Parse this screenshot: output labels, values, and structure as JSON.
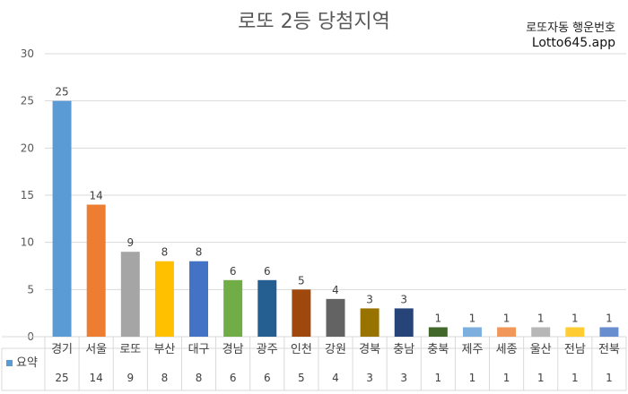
{
  "chart_data": {
    "type": "bar",
    "title": "로또 2등 당첨지역",
    "categories": [
      "경기",
      "서울",
      "로또",
      "부산",
      "대구",
      "경남",
      "광주",
      "인천",
      "강원",
      "경북",
      "충남",
      "충북",
      "제주",
      "세종",
      "울산",
      "전남",
      "전북"
    ],
    "series": [
      {
        "name": "요약",
        "values": [
          25,
          14,
          9,
          8,
          8,
          6,
          6,
          5,
          4,
          3,
          3,
          1,
          1,
          1,
          1,
          1,
          1
        ]
      }
    ],
    "ylim": [
      0,
      30
    ],
    "yticks": [
      0,
      5,
      10,
      15,
      20,
      25,
      30
    ],
    "grid": true,
    "legend": "data-table",
    "data_labels": true,
    "colors": [
      "#5b9bd5",
      "#ed7d31",
      "#a5a5a5",
      "#ffc000",
      "#4472c4",
      "#70ad47",
      "#255e91",
      "#9e480e",
      "#636363",
      "#997300",
      "#264478",
      "#43682b",
      "#7cafdd",
      "#f1975a",
      "#b7b7b7",
      "#ffcd33",
      "#698ed0"
    ]
  },
  "watermark": {
    "line1": "로또자동 행운번호",
    "line2": "Lotto645.app"
  }
}
